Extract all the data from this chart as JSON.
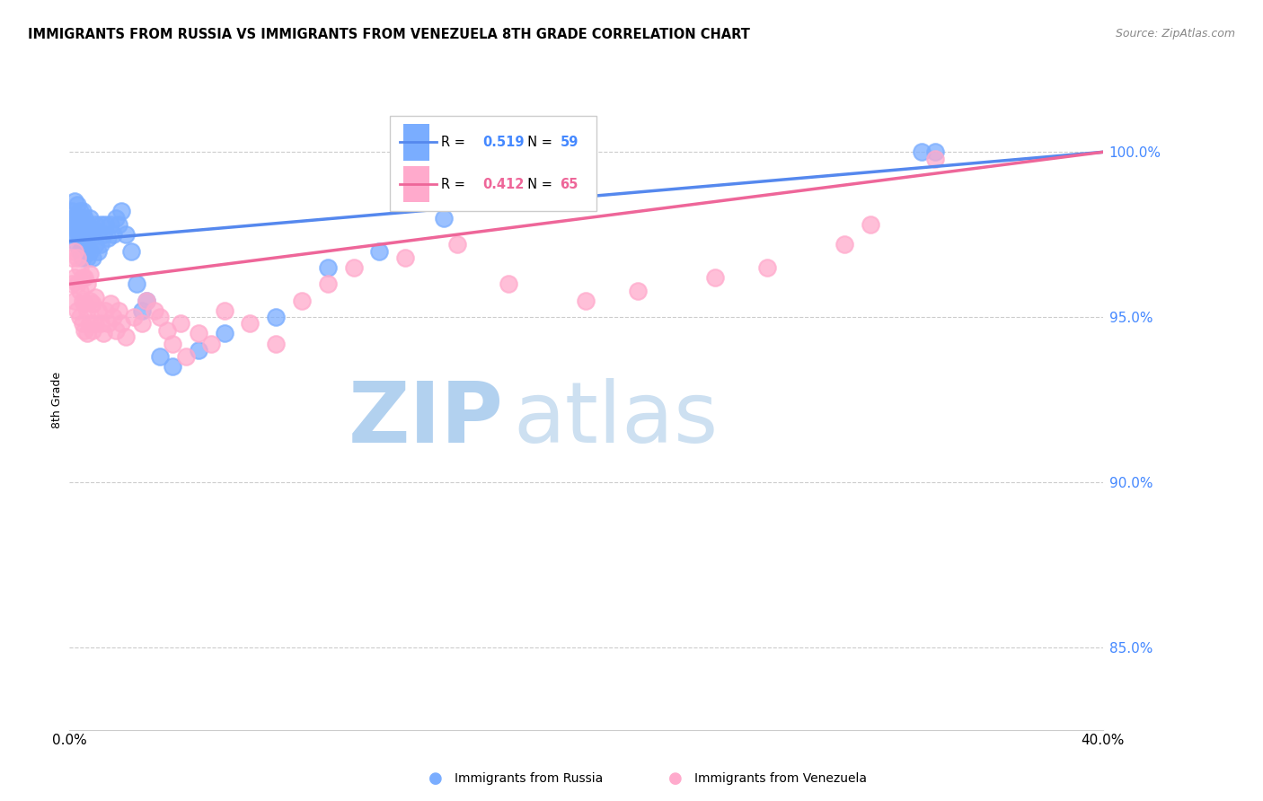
{
  "title": "IMMIGRANTS FROM RUSSIA VS IMMIGRANTS FROM VENEZUELA 8TH GRADE CORRELATION CHART",
  "source": "Source: ZipAtlas.com",
  "ylabel": "8th Grade",
  "right_yticks": [
    "100.0%",
    "95.0%",
    "90.0%",
    "85.0%"
  ],
  "right_ytick_vals": [
    1.0,
    0.95,
    0.9,
    0.85
  ],
  "xlim": [
    0.0,
    0.4
  ],
  "ylim": [
    0.825,
    1.025
  ],
  "russia_R": 0.519,
  "russia_N": 59,
  "venezuela_R": 0.412,
  "venezuela_N": 65,
  "russia_color": "#7aadff",
  "venezuela_color": "#ffaacc",
  "russia_line_color": "#5588ee",
  "venezuela_line_color": "#ee6699",
  "watermark_zip": "ZIP",
  "watermark_atlas": "atlas",
  "watermark_color_zip": "#cce0ff",
  "watermark_color_atlas": "#b8d4f0",
  "russia_x": [
    0.0005,
    0.001,
    0.001,
    0.001,
    0.002,
    0.002,
    0.002,
    0.003,
    0.003,
    0.003,
    0.003,
    0.004,
    0.004,
    0.004,
    0.004,
    0.005,
    0.005,
    0.005,
    0.005,
    0.006,
    0.006,
    0.006,
    0.007,
    0.007,
    0.007,
    0.008,
    0.008,
    0.008,
    0.009,
    0.009,
    0.01,
    0.01,
    0.011,
    0.011,
    0.012,
    0.012,
    0.013,
    0.014,
    0.015,
    0.016,
    0.017,
    0.018,
    0.019,
    0.02,
    0.022,
    0.024,
    0.026,
    0.028,
    0.03,
    0.035,
    0.04,
    0.05,
    0.06,
    0.08,
    0.1,
    0.12,
    0.145,
    0.33,
    0.335
  ],
  "russia_y": [
    0.975,
    0.978,
    0.98,
    0.982,
    0.975,
    0.98,
    0.985,
    0.972,
    0.976,
    0.98,
    0.984,
    0.97,
    0.975,
    0.978,
    0.982,
    0.968,
    0.972,
    0.978,
    0.982,
    0.97,
    0.975,
    0.98,
    0.968,
    0.974,
    0.978,
    0.97,
    0.975,
    0.98,
    0.968,
    0.975,
    0.972,
    0.978,
    0.97,
    0.976,
    0.972,
    0.978,
    0.975,
    0.978,
    0.974,
    0.978,
    0.975,
    0.98,
    0.978,
    0.982,
    0.975,
    0.97,
    0.96,
    0.952,
    0.955,
    0.938,
    0.935,
    0.94,
    0.945,
    0.95,
    0.965,
    0.97,
    0.98,
    1.0,
    1.0
  ],
  "venezuela_x": [
    0.001,
    0.001,
    0.002,
    0.002,
    0.002,
    0.003,
    0.003,
    0.003,
    0.004,
    0.004,
    0.004,
    0.005,
    0.005,
    0.005,
    0.006,
    0.006,
    0.006,
    0.007,
    0.007,
    0.007,
    0.008,
    0.008,
    0.008,
    0.009,
    0.009,
    0.01,
    0.01,
    0.011,
    0.012,
    0.013,
    0.014,
    0.015,
    0.016,
    0.017,
    0.018,
    0.019,
    0.02,
    0.022,
    0.025,
    0.028,
    0.03,
    0.033,
    0.035,
    0.038,
    0.04,
    0.043,
    0.045,
    0.05,
    0.055,
    0.06,
    0.07,
    0.08,
    0.09,
    0.1,
    0.11,
    0.13,
    0.15,
    0.17,
    0.2,
    0.22,
    0.25,
    0.27,
    0.3,
    0.31,
    0.335
  ],
  "venezuela_y": [
    0.96,
    0.968,
    0.955,
    0.962,
    0.97,
    0.952,
    0.96,
    0.968,
    0.95,
    0.958,
    0.965,
    0.948,
    0.955,
    0.962,
    0.946,
    0.954,
    0.962,
    0.945,
    0.952,
    0.96,
    0.948,
    0.955,
    0.963,
    0.946,
    0.954,
    0.948,
    0.956,
    0.952,
    0.948,
    0.945,
    0.952,
    0.948,
    0.954,
    0.95,
    0.946,
    0.952,
    0.948,
    0.944,
    0.95,
    0.948,
    0.955,
    0.952,
    0.95,
    0.946,
    0.942,
    0.948,
    0.938,
    0.945,
    0.942,
    0.952,
    0.948,
    0.942,
    0.955,
    0.96,
    0.965,
    0.968,
    0.972,
    0.96,
    0.955,
    0.958,
    0.962,
    0.965,
    0.972,
    0.978,
    0.998
  ]
}
